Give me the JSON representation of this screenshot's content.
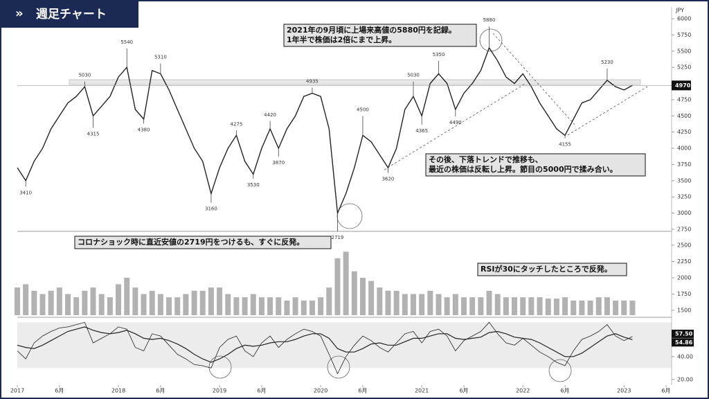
{
  "header": {
    "title": "週足チャート"
  },
  "chart_data": {
    "type": "stock",
    "currency": "JPY",
    "x": [
      "2017-01",
      "2017-02",
      "2017-03",
      "2017-04",
      "2017-05",
      "2017-06",
      "2017-07",
      "2017-08",
      "2017-09",
      "2017-10",
      "2017-11",
      "2017-12",
      "2018-01",
      "2018-02",
      "2018-03",
      "2018-04",
      "2018-05",
      "2018-06",
      "2018-07",
      "2018-08",
      "2018-09",
      "2018-10",
      "2018-11",
      "2018-12",
      "2019-01",
      "2019-02",
      "2019-03",
      "2019-04",
      "2019-05",
      "2019-06",
      "2019-07",
      "2019-08",
      "2019-09",
      "2019-10",
      "2019-11",
      "2019-12",
      "2020-01",
      "2020-02",
      "2020-03",
      "2020-04",
      "2020-05",
      "2020-06",
      "2020-07",
      "2020-08",
      "2020-09",
      "2020-10",
      "2020-11",
      "2020-12",
      "2021-01",
      "2021-02",
      "2021-03",
      "2021-04",
      "2021-05",
      "2021-06",
      "2021-07",
      "2021-08",
      "2021-09",
      "2021-10",
      "2021-11",
      "2021-12",
      "2022-01",
      "2022-02",
      "2022-03",
      "2022-04",
      "2022-05",
      "2022-06",
      "2022-07",
      "2022-08",
      "2022-09",
      "2022-10",
      "2022-11",
      "2022-12",
      "2023-01",
      "2023-02"
    ],
    "price": {
      "color": "#222222",
      "values": [
        3700,
        3500,
        3800,
        4000,
        4300,
        4500,
        4700,
        4800,
        4950,
        4500,
        4650,
        4800,
        5100,
        5250,
        4600,
        4450,
        5200,
        5150,
        4900,
        4600,
        4300,
        4000,
        3800,
        3300,
        3700,
        4000,
        4200,
        3800,
        3600,
        4000,
        4300,
        4000,
        4300,
        4500,
        4800,
        4850,
        4800,
        4300,
        3000,
        3300,
        3700,
        4200,
        4100,
        3900,
        3700,
        4000,
        4600,
        4800,
        4500,
        5000,
        5150,
        5000,
        4600,
        4850,
        5000,
        5200,
        5550,
        5350,
        5100,
        5000,
        5150,
        4950,
        4700,
        4500,
        4300,
        4200,
        4450,
        4700,
        4750,
        4900,
        5050,
        4950,
        4900,
        4970
      ],
      "ylim": [
        2750,
        6000
      ],
      "yticks": [
        2750,
        3000,
        3250,
        3500,
        3750,
        4000,
        4250,
        4500,
        4750,
        5000,
        5250,
        5500,
        5750,
        6000
      ],
      "last_value": 4970
    },
    "price_labels": [
      {
        "x": "2017-02",
        "value": 3410
      },
      {
        "x": "2017-09",
        "value": 5030
      },
      {
        "x": "2017-10",
        "value": 4315
      },
      {
        "x": "2018-02",
        "value": 5540
      },
      {
        "x": "2018-04",
        "value": 4380
      },
      {
        "x": "2018-06",
        "value": 5310
      },
      {
        "x": "2018-12",
        "value": 3160
      },
      {
        "x": "2019-03",
        "value": 4275
      },
      {
        "x": "2019-05",
        "value": 3530
      },
      {
        "x": "2019-07",
        "value": 4420
      },
      {
        "x": "2019-08",
        "value": 3870
      },
      {
        "x": "2019-12",
        "value": 4935
      },
      {
        "x": "2020-03",
        "value": 2719
      },
      {
        "x": "2020-06",
        "value": 4500
      },
      {
        "x": "2020-09",
        "value": 3620
      },
      {
        "x": "2020-12",
        "value": 5030
      },
      {
        "x": "2021-01",
        "value": 4365
      },
      {
        "x": "2021-03",
        "value": 5350
      },
      {
        "x": "2021-05",
        "value": 4490
      },
      {
        "x": "2021-09",
        "value": 5880
      },
      {
        "x": "2022-06",
        "value": 4155
      },
      {
        "x": "2022-11",
        "value": 5230
      }
    ],
    "volume": {
      "color": "#555555",
      "values": [
        1850,
        1900,
        1800,
        1750,
        1800,
        1850,
        1750,
        1700,
        1800,
        1850,
        1750,
        1700,
        1900,
        2000,
        1850,
        1750,
        1800,
        1750,
        1700,
        1700,
        1750,
        1800,
        1800,
        1850,
        1850,
        1750,
        1700,
        1700,
        1750,
        1700,
        1700,
        1700,
        1650,
        1700,
        1650,
        1650,
        1700,
        1850,
        2300,
        2400,
        2100,
        2000,
        1950,
        1850,
        1800,
        1800,
        1750,
        1750,
        1750,
        1800,
        1750,
        1700,
        1750,
        1700,
        1700,
        1700,
        1800,
        1750,
        1700,
        1700,
        1700,
        1700,
        1700,
        1680,
        1680,
        1700,
        1650,
        1650,
        1650,
        1700,
        1700,
        1650,
        1650,
        1650
      ],
      "ylim": [
        1425,
        2670
      ],
      "yticks": [
        1500,
        1750,
        2000,
        2250,
        2500
      ]
    },
    "rsi": {
      "series": [
        {
          "color": "#222222",
          "values": [
            45,
            38,
            52,
            58,
            62,
            65,
            66,
            68,
            70,
            52,
            56,
            60,
            66,
            64,
            48,
            45,
            60,
            58,
            50,
            42,
            38,
            33,
            32,
            30,
            48,
            55,
            58,
            45,
            40,
            52,
            58,
            48,
            55,
            60,
            64,
            62,
            58,
            42,
            25,
            40,
            50,
            58,
            54,
            48,
            44,
            52,
            60,
            62,
            52,
            62,
            64,
            58,
            45,
            54,
            58,
            62,
            70,
            60,
            52,
            50,
            56,
            50,
            44,
            40,
            35,
            32,
            45,
            55,
            58,
            62,
            68,
            58,
            54,
            57.5
          ]
        },
        {
          "color": "#222222",
          "values": [
            50,
            48,
            47,
            50,
            54,
            58,
            62,
            64,
            66,
            63,
            61,
            60,
            61,
            63,
            60,
            56,
            55,
            56,
            54,
            51,
            47,
            42,
            38,
            35,
            38,
            42,
            47,
            50,
            49,
            50,
            52,
            53,
            53,
            55,
            58,
            60,
            60,
            56,
            47,
            44,
            44,
            47,
            51,
            52,
            50,
            50,
            53,
            56,
            56,
            58,
            60,
            60,
            56,
            55,
            56,
            57,
            61,
            62,
            60,
            57,
            56,
            55,
            52,
            48,
            44,
            40,
            40,
            43,
            48,
            53,
            58,
            60,
            57,
            54.86
          ]
        }
      ],
      "last_values": [
        57.5,
        54.86
      ],
      "last_value_labels": [
        "57.50",
        "54.86"
      ],
      "band": [
        30,
        70
      ],
      "ylim": [
        15,
        72
      ],
      "yticks": [
        {
          "value": 20,
          "label": "20.00"
        },
        {
          "value": 40,
          "label": "40.00"
        }
      ]
    },
    "xticks": [
      {
        "value": "2017-01",
        "label": "2017"
      },
      {
        "value": "2017-06",
        "label": "6月"
      },
      {
        "value": "2018-01",
        "label": "2018"
      },
      {
        "value": "2018-06",
        "label": "6月"
      },
      {
        "value": "2019-01",
        "label": "2019"
      },
      {
        "value": "2019-06",
        "label": "6月"
      },
      {
        "value": "2020-01",
        "label": "2020"
      },
      {
        "value": "2020-06",
        "label": "6月"
      },
      {
        "value": "2021-01",
        "label": "2021"
      },
      {
        "value": "2021-06",
        "label": "6月"
      },
      {
        "value": "2022-01",
        "label": "2022"
      },
      {
        "value": "2022-06",
        "label": "6月"
      },
      {
        "value": "2023-01",
        "label": "2023"
      },
      {
        "value": "2023-06",
        "label": "6月"
      }
    ],
    "annotations": [
      [
        "2021年の9月頃に上場来高値の5880円を記録。",
        "1年半で株価は2倍にまで上昇。"
      ],
      [
        "その後、下落トレンドで推移も、",
        "最近の株価は反転し上昇。節目の5000円で揉み合い。"
      ],
      [
        "コロナショック時に直近安値の2719円をつけるも、すぐに反発。"
      ],
      [
        "RSIが30にタッチしたところで反発。"
      ]
    ]
  }
}
